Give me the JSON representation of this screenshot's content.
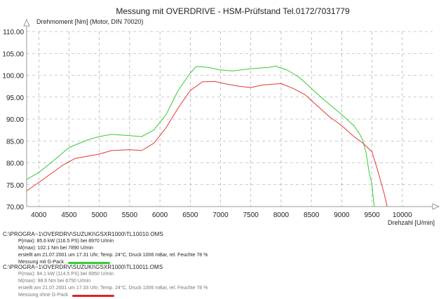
{
  "chart_data": {
    "type": "line",
    "title": "Messung mit OVERDRIVE - HSM-Prüfstand Tel.0172/7031779",
    "ylabel": "Drehmoment [Nm] (Motor, DIN 70020)",
    "xlabel": "Drehzahl [U/min]",
    "xlim": [
      3800,
      10500
    ],
    "ylim": [
      70,
      110
    ],
    "x_ticks": [
      "4000",
      "4500",
      "5000",
      "5500",
      "6000",
      "6500",
      "7000",
      "7500",
      "8000",
      "8500",
      "9000",
      "9500",
      "10000"
    ],
    "y_ticks": [
      "70.00",
      "75.00",
      "80.00",
      "85.00",
      "90.00",
      "95.00",
      "100.00",
      "105.00",
      "110.00"
    ],
    "grid": true,
    "series": [
      {
        "name": "Messung mit G-Pack",
        "color": "#33cc33",
        "points": [
          [
            3800,
            76.2
          ],
          [
            4000,
            77.8
          ],
          [
            4200,
            80.0
          ],
          [
            4500,
            83.5
          ],
          [
            4800,
            85.2
          ],
          [
            5000,
            86.0
          ],
          [
            5200,
            86.5
          ],
          [
            5500,
            86.2
          ],
          [
            5700,
            86.0
          ],
          [
            5900,
            87.5
          ],
          [
            6100,
            91.0
          ],
          [
            6300,
            96.5
          ],
          [
            6500,
            100.5
          ],
          [
            6600,
            102.0
          ],
          [
            6800,
            101.8
          ],
          [
            7000,
            101.2
          ],
          [
            7200,
            101.0
          ],
          [
            7500,
            101.5
          ],
          [
            7800,
            101.8
          ],
          [
            7900,
            102.1
          ],
          [
            8100,
            101.2
          ],
          [
            8300,
            99.5
          ],
          [
            8500,
            97.0
          ],
          [
            8700,
            94.5
          ],
          [
            9000,
            91.0
          ],
          [
            9200,
            88.5
          ],
          [
            9300,
            86.5
          ],
          [
            9350,
            85.0
          ],
          [
            9400,
            82.5
          ],
          [
            9450,
            78.0
          ],
          [
            9500,
            75.0
          ],
          [
            9520,
            72.0
          ],
          [
            9540,
            70.0
          ]
        ]
      },
      {
        "name": "Messung ohne G-Pack",
        "color": "#e83333",
        "points": [
          [
            3800,
            73.6
          ],
          [
            4000,
            75.5
          ],
          [
            4200,
            77.5
          ],
          [
            4400,
            79.5
          ],
          [
            4600,
            81.0
          ],
          [
            4800,
            81.5
          ],
          [
            5000,
            82.0
          ],
          [
            5200,
            82.8
          ],
          [
            5500,
            83.0
          ],
          [
            5700,
            82.8
          ],
          [
            5900,
            84.5
          ],
          [
            6100,
            88.0
          ],
          [
            6300,
            92.5
          ],
          [
            6500,
            96.5
          ],
          [
            6700,
            98.5
          ],
          [
            6900,
            98.6
          ],
          [
            7100,
            98.0
          ],
          [
            7300,
            97.5
          ],
          [
            7500,
            97.2
          ],
          [
            7700,
            97.8
          ],
          [
            7900,
            98.0
          ],
          [
            8000,
            98.1
          ],
          [
            8200,
            97.0
          ],
          [
            8400,
            95.5
          ],
          [
            8600,
            93.0
          ],
          [
            8800,
            90.5
          ],
          [
            9000,
            88.5
          ],
          [
            9200,
            86.0
          ],
          [
            9350,
            84.5
          ],
          [
            9500,
            82.5
          ],
          [
            9600,
            78.0
          ],
          [
            9700,
            73.0
          ],
          [
            9750,
            70.0
          ]
        ]
      }
    ]
  },
  "legend": {
    "entries": [
      {
        "file": "C:\\PROGRA~1\\OVERDRV\\SUZUKI\\GSXR1000\\TL10010.OMS",
        "pmax": "P(max): 85.6 kW (116.5 PS) bei 8970 U/min",
        "mmax": "M(max): 102.1 Nm bei 7890 U/min",
        "created": "erstellt am 21.07.2001 um 17.31 Uhr, Temp. 24°C, Druck 1006 mBar, rel. Feuchte 78 %",
        "label": "Messung mit G-Pack",
        "color": "#33cc33"
      },
      {
        "file": "C:\\PROGRA~1\\OVERDRV\\SUZUKI\\GSXR1000\\TL10011.OMS",
        "pmax": "P(max): 84.1 kW (114.5 PS) bei 8950 U/min",
        "mmax": "M(max): 98.6 Nm bei 6750 U/min",
        "created": "erstellt am 21.07.2001 um 17.33 Uhr, Temp. 24°C, Druck 1006 mBar, rel. Feuchte 78 %",
        "label": "Messung ohne G-Pack",
        "color": "#dd2222"
      }
    ]
  }
}
